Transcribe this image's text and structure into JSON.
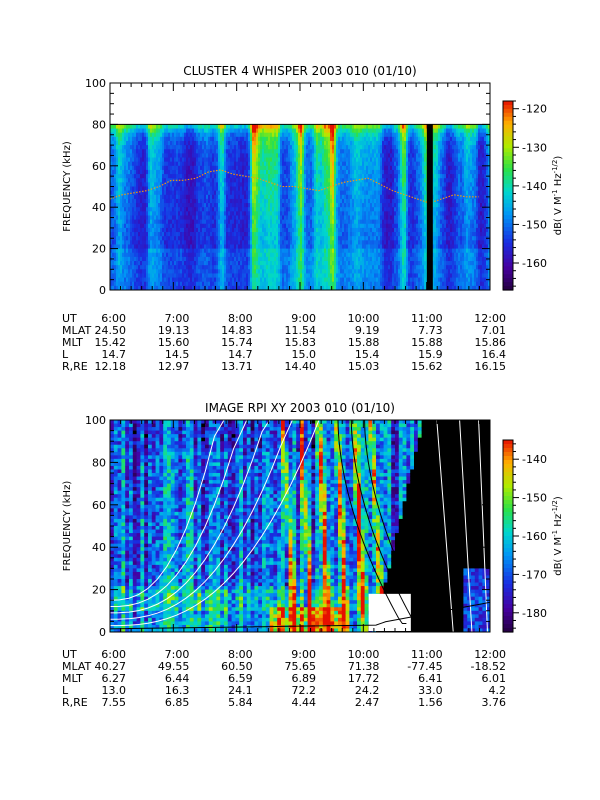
{
  "chart_data": [
    {
      "type": "heatmap",
      "title": "CLUSTER 4 WHISPER 2003 010 (01/10)",
      "ylabel": "FREQUENCY (kHz)",
      "ylim": [
        0,
        100
      ],
      "yticks": [
        "0",
        "20",
        "40",
        "60",
        "80",
        "100"
      ],
      "data_max_frequency_khz": 80,
      "colorbar": {
        "label_parts": [
          "dB( V M",
          "-1",
          " Hz",
          "-1/2",
          ")"
        ],
        "range": [
          -167,
          -118
        ],
        "ticks": [
          "-120",
          "-130",
          "-140",
          "-150",
          "-160"
        ]
      },
      "gap_time": "11:03",
      "plasma_line_khz": [
        44,
        46,
        47,
        48,
        50,
        53,
        53,
        54,
        57,
        58,
        56,
        55,
        54,
        52,
        50,
        50,
        49,
        48,
        50,
        52,
        53,
        54,
        51,
        48,
        46,
        44,
        42,
        44,
        46,
        45,
        45
      ],
      "ephemeris": {
        "labels": [
          "UT",
          "MLAT",
          "MLT",
          "L",
          "R,RE"
        ],
        "columns": [
          [
            "6:00",
            "24.50",
            "15.42",
            "14.7",
            "12.18"
          ],
          [
            "7:00",
            "19.13",
            "15.60",
            "14.5",
            "12.97"
          ],
          [
            "8:00",
            "14.83",
            "15.74",
            "14.7",
            "13.71"
          ],
          [
            "9:00",
            "11.54",
            "15.83",
            "15.0",
            "14.40"
          ],
          [
            "10:00",
            "9.19",
            "15.88",
            "15.4",
            "15.03"
          ],
          [
            "11:00",
            "7.73",
            "15.88",
            "15.9",
            "15.62"
          ],
          [
            "12:00",
            "7.01",
            "15.86",
            "16.4",
            "16.15"
          ]
        ]
      }
    },
    {
      "type": "heatmap",
      "title": "IMAGE RPI XY 2003 010 (01/10)",
      "ylabel": "FREQUENCY (kHz)",
      "ylim": [
        0,
        100
      ],
      "yticks": [
        "0",
        "20",
        "40",
        "60",
        "80",
        "100"
      ],
      "colorbar": {
        "label_parts": [
          "dB( V M",
          "-1",
          " Hz",
          "-1/2",
          ")"
        ],
        "range": [
          -185,
          -135
        ],
        "ticks": [
          "-140",
          "-150",
          "-160",
          "-170",
          "-180"
        ]
      },
      "gap_region": {
        "t_start": "10:05",
        "t_end": "10:45",
        "f_max_khz": 18
      },
      "ephemeris": {
        "labels": [
          "UT",
          "MLAT",
          "MLT",
          "L",
          "R,RE"
        ],
        "columns": [
          [
            "6:00",
            "40.27",
            "6.27",
            "13.0",
            "7.55"
          ],
          [
            "7:00",
            "49.55",
            "6.44",
            "16.3",
            "6.85"
          ],
          [
            "8:00",
            "60.50",
            "6.59",
            "24.1",
            "5.84"
          ],
          [
            "9:00",
            "75.65",
            "6.89",
            "72.2",
            "4.44"
          ],
          [
            "10:00",
            "71.38",
            "17.72",
            "24.2",
            "2.47"
          ],
          [
            "11:00",
            "-77.45",
            "6.41",
            "33.0",
            "1.56"
          ],
          [
            "12:00",
            "-18.52",
            "6.01",
            "4.2",
            "3.76"
          ]
        ]
      }
    }
  ]
}
